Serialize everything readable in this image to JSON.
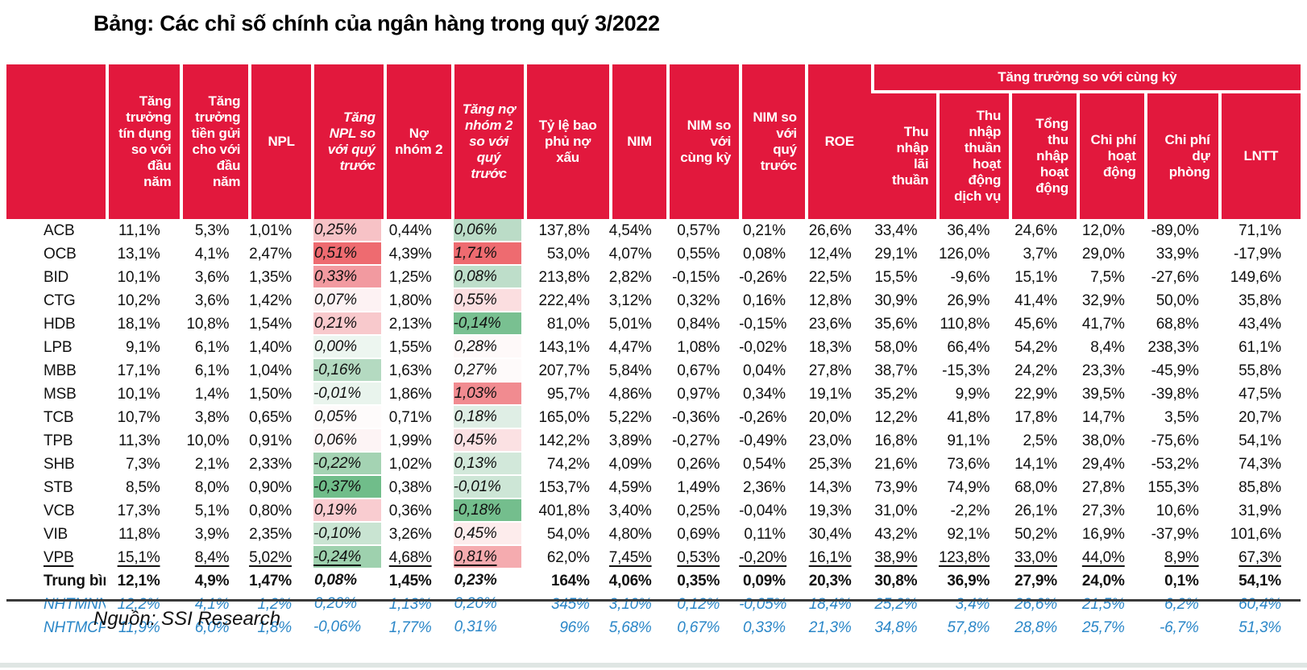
{
  "title": "Bảng: Các chỉ số chính của ngân hàng trong quý 3/2022",
  "source": "Nguồn: SSI Research",
  "colors": {
    "header_red": "#e2183d",
    "blue_row_text": "#2b87c8",
    "table_rule": "#3a3a3a",
    "bottom_bar": "#dfe6e3",
    "heat_strong_red": "#ee6b70",
    "heat_strong_green": "#70bd8a"
  },
  "table": {
    "group_header": "Tăng trưởng so với cùng kỳ",
    "columns": [
      {
        "label": "",
        "align": "right"
      },
      {
        "label": "Tăng trưởng tín dụng so với đầu năm",
        "align": "right"
      },
      {
        "label": "Tăng trưởng tiền gửi cho với đầu năm",
        "align": "right"
      },
      {
        "label": "NPL",
        "align": "center"
      },
      {
        "label": "Tăng NPL so với quý trước",
        "align": "right",
        "italic": true
      },
      {
        "label": "Nợ nhóm 2",
        "align": "center"
      },
      {
        "label": "Tăng nợ nhóm 2 so với quý trước",
        "align": "center",
        "italic": true
      },
      {
        "label": "Tỷ lệ bao phủ nợ xấu",
        "align": "center"
      },
      {
        "label": "NIM",
        "align": "center"
      },
      {
        "label": "NIM so với cùng kỳ",
        "align": "right"
      },
      {
        "label": "NIM so với quý trước",
        "align": "right"
      },
      {
        "label": "ROE",
        "align": "center"
      },
      {
        "label": "Thu nhập lãi thuần",
        "align": "right",
        "group": true
      },
      {
        "label": "Thu nhập thuần hoạt động dịch vụ",
        "align": "right",
        "group": true
      },
      {
        "label": "Tổng thu nhập hoạt động",
        "align": "right",
        "group": true
      },
      {
        "label": "Chi phí hoạt động",
        "align": "right",
        "group": true
      },
      {
        "label": "Chi phí dự phòng",
        "align": "right",
        "group": true
      },
      {
        "label": "LNTT",
        "align": "center",
        "group": true
      }
    ],
    "rows": [
      {
        "name": "ACB",
        "values": [
          "11,1%",
          "5,3%",
          "1,01%",
          "0,25%",
          "0,44%",
          "0,06%",
          "137,8%",
          "4,54%",
          "0,57%",
          "0,21%",
          "26,6%",
          "33,4%",
          "36,4%",
          "24,6%",
          "12,0%",
          "-89,0%",
          "71,1%"
        ],
        "heat_npl": "#f7c2c6",
        "heat_no2": "#bbdcc7"
      },
      {
        "name": "OCB",
        "values": [
          "13,1%",
          "4,1%",
          "2,47%",
          "0,51%",
          "4,39%",
          "1,71%",
          "53,0%",
          "4,07%",
          "0,55%",
          "0,08%",
          "12,4%",
          "29,1%",
          "126,0%",
          "3,7%",
          "29,0%",
          "33,9%",
          "-17,9%"
        ],
        "heat_npl": "#ee6b70",
        "heat_no2": "#ee6b70"
      },
      {
        "name": "BID",
        "values": [
          "10,1%",
          "3,6%",
          "1,35%",
          "0,33%",
          "1,25%",
          "0,08%",
          "213,8%",
          "2,82%",
          "-0,15%",
          "-0,26%",
          "22,5%",
          "15,5%",
          "-9,6%",
          "15,1%",
          "7,5%",
          "-27,6%",
          "149,6%"
        ],
        "heat_npl": "#f29aa0",
        "heat_no2": "#bedeca"
      },
      {
        "name": "CTG",
        "values": [
          "10,2%",
          "3,6%",
          "1,42%",
          "0,07%",
          "1,80%",
          "0,55%",
          "222,4%",
          "3,12%",
          "0,32%",
          "0,16%",
          "12,8%",
          "30,9%",
          "26,9%",
          "41,4%",
          "32,9%",
          "50,0%",
          "35,8%"
        ],
        "heat_npl": "#fdf2f3",
        "heat_no2": "#fbdee0"
      },
      {
        "name": "HDB",
        "values": [
          "18,1%",
          "10,8%",
          "1,54%",
          "0,21%",
          "2,13%",
          "-0,14%",
          "81,0%",
          "5,01%",
          "0,84%",
          "-0,15%",
          "23,6%",
          "35,6%",
          "110,8%",
          "45,6%",
          "41,7%",
          "68,8%",
          "43,4%"
        ],
        "heat_npl": "#f8c9cc",
        "heat_no2": "#79c091"
      },
      {
        "name": "LPB",
        "values": [
          "9,1%",
          "6,1%",
          "1,40%",
          "0,00%",
          "1,55%",
          "0,28%",
          "143,1%",
          "4,47%",
          "1,08%",
          "-0,02%",
          "18,3%",
          "58,0%",
          "66,4%",
          "54,2%",
          "8,4%",
          "238,3%",
          "61,1%"
        ],
        "heat_npl": "#edf6f0",
        "heat_no2": "#fef9f9"
      },
      {
        "name": "MBB",
        "values": [
          "17,1%",
          "6,1%",
          "1,04%",
          "-0,16%",
          "1,63%",
          "0,27%",
          "207,7%",
          "5,84%",
          "0,67%",
          "0,04%",
          "27,8%",
          "38,7%",
          "-15,3%",
          "24,2%",
          "23,3%",
          "-45,9%",
          "55,8%"
        ],
        "heat_npl": "#b4dac1",
        "heat_no2": "#fefafa"
      },
      {
        "name": "MSB",
        "values": [
          "10,1%",
          "1,4%",
          "1,50%",
          "-0,01%",
          "1,86%",
          "1,03%",
          "95,7%",
          "4,86%",
          "0,97%",
          "0,34%",
          "19,1%",
          "35,2%",
          "9,9%",
          "22,9%",
          "39,5%",
          "-39,8%",
          "47,5%"
        ],
        "heat_npl": "#e9f4ed",
        "heat_no2": "#f18b90"
      },
      {
        "name": "TCB",
        "values": [
          "10,7%",
          "3,8%",
          "0,65%",
          "0,05%",
          "0,71%",
          "0,18%",
          "165,0%",
          "5,22%",
          "-0,36%",
          "-0,26%",
          "20,0%",
          "12,2%",
          "41,8%",
          "17,8%",
          "14,7%",
          "3,5%",
          "20,7%"
        ],
        "heat_npl": "#fefbfb",
        "heat_no2": "#dfeee5"
      },
      {
        "name": "TPB",
        "values": [
          "11,3%",
          "10,0%",
          "0,91%",
          "0,06%",
          "1,99%",
          "0,45%",
          "142,2%",
          "3,89%",
          "-0,27%",
          "-0,49%",
          "23,0%",
          "16,8%",
          "91,1%",
          "2,5%",
          "38,0%",
          "-75,6%",
          "54,1%"
        ],
        "heat_npl": "#fdf4f5",
        "heat_no2": "#fbe1e3"
      },
      {
        "name": "SHB",
        "values": [
          "7,3%",
          "2,1%",
          "2,33%",
          "-0,22%",
          "1,02%",
          "0,13%",
          "74,2%",
          "4,09%",
          "0,26%",
          "0,54%",
          "25,3%",
          "21,6%",
          "73,6%",
          "14,1%",
          "29,4%",
          "-53,2%",
          "74,3%"
        ],
        "heat_npl": "#a4d3b3",
        "heat_no2": "#d2e8da"
      },
      {
        "name": "STB",
        "values": [
          "8,5%",
          "8,0%",
          "0,90%",
          "-0,37%",
          "0,38%",
          "-0,01%",
          "153,7%",
          "4,59%",
          "1,49%",
          "2,36%",
          "14,3%",
          "73,9%",
          "74,9%",
          "68,0%",
          "27,8%",
          "155,3%",
          "85,8%"
        ],
        "heat_npl": "#70bd8a",
        "heat_no2": "#cde6d6"
      },
      {
        "name": "VCB",
        "values": [
          "17,3%",
          "5,1%",
          "0,80%",
          "0,19%",
          "0,36%",
          "-0,18%",
          "401,8%",
          "3,40%",
          "0,25%",
          "-0,04%",
          "19,3%",
          "31,0%",
          "-2,2%",
          "26,1%",
          "27,3%",
          "10,6%",
          "31,9%"
        ],
        "heat_npl": "#f9ccd0",
        "heat_no2": "#74be8d"
      },
      {
        "name": "VIB",
        "values": [
          "11,8%",
          "3,9%",
          "2,35%",
          "-0,10%",
          "3,26%",
          "0,45%",
          "54,0%",
          "4,80%",
          "0,69%",
          "0,11%",
          "30,4%",
          "43,2%",
          "92,1%",
          "50,2%",
          "16,9%",
          "-37,9%",
          "101,6%"
        ],
        "heat_npl": "#c9e4d2",
        "heat_no2": "#fdecec"
      },
      {
        "name": "VPB",
        "values": [
          "15,1%",
          "8,4%",
          "5,02%",
          "-0,24%",
          "4,68%",
          "0,81%",
          "62,0%",
          "7,45%",
          "0,53%",
          "-0,20%",
          "16,1%",
          "38,9%",
          "123,8%",
          "33,0%",
          "44,0%",
          "8,9%",
          "67,3%"
        ],
        "heat_npl": "#9ed1ae",
        "heat_no2": "#f5abaf",
        "underline": true,
        "no_underline_cols": [
          6
        ]
      },
      {
        "name": "Trung bình",
        "values": [
          "12,1%",
          "4,9%",
          "1,47%",
          "0,08%",
          "1,45%",
          "0,23%",
          "164%",
          "4,06%",
          "0,35%",
          "0,09%",
          "20,3%",
          "30,8%",
          "36,9%",
          "27,9%",
          "24,0%",
          "0,1%",
          "54,1%"
        ],
        "bold": true
      },
      {
        "name": "NHTMNN",
        "values": [
          "12,2%",
          "4,1%",
          "1,2%",
          "0,20%",
          "1,13%",
          "0,20%",
          "345%",
          "3,10%",
          "0,12%",
          "-0,05%",
          "18,4%",
          "25,2%",
          "3,4%",
          "26,6%",
          "21,5%",
          "6,2%",
          "60,4%"
        ],
        "blue": true
      },
      {
        "name": "NHTMCP",
        "values": [
          "11,9%",
          "6,0%",
          "1,8%",
          "-0,06%",
          "1,77%",
          "0,31%",
          "96%",
          "5,68%",
          "0,67%",
          "0,33%",
          "21,3%",
          "34,8%",
          "57,8%",
          "28,8%",
          "25,7%",
          "-6,7%",
          "51,3%"
        ],
        "blue": true
      }
    ]
  }
}
